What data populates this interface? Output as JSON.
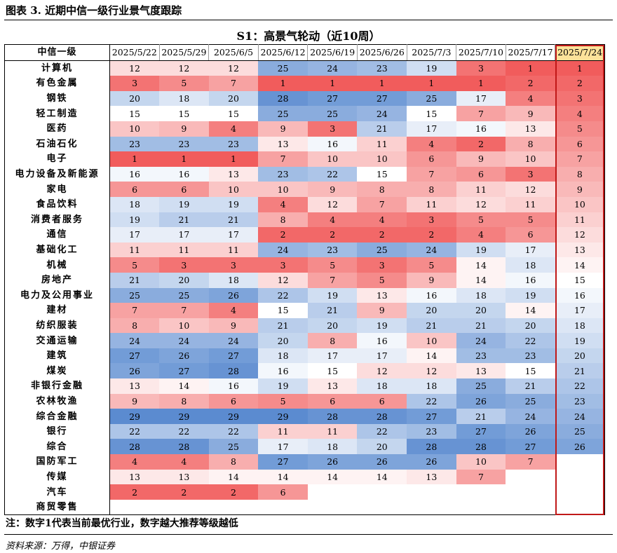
{
  "figure_title": "图表 3. 近期中信一级行业景气度跟踪",
  "table_title": "S1：高景气轮动（近10周）",
  "header_label": "中信一级",
  "highlight_column": 9,
  "colors": {
    "low_rank_red": "#f15c5c",
    "high_rank_blue": "#5b8bd0",
    "highlight_header": "#fce29a",
    "highlight_border": "#c01818"
  },
  "chart_data": {
    "type": "heatmap",
    "title": "S1：高景气轮动（近10周）",
    "scale": [
      1,
      29
    ],
    "columns": [
      "2025/5/22",
      "2025/5/29",
      "2025/6/5",
      "2025/6/12",
      "2025/6/19",
      "2025/6/26",
      "2025/7/3",
      "2025/7/10",
      "2025/7/17",
      "2025/7/24"
    ],
    "rows": [
      {
        "name": "计算机",
        "values": [
          12,
          12,
          12,
          25,
          24,
          23,
          19,
          3,
          1,
          1
        ]
      },
      {
        "name": "有色金属",
        "values": [
          3,
          5,
          7,
          1,
          1,
          1,
          1,
          1,
          2,
          2
        ]
      },
      {
        "name": "钢铁",
        "values": [
          20,
          18,
          20,
          28,
          27,
          27,
          25,
          17,
          4,
          3
        ]
      },
      {
        "name": "轻工制造",
        "values": [
          15,
          15,
          15,
          25,
          25,
          24,
          15,
          7,
          9,
          4
        ]
      },
      {
        "name": "医药",
        "values": [
          10,
          9,
          4,
          9,
          3,
          21,
          17,
          16,
          13,
          5
        ]
      },
      {
        "name": "石油石化",
        "values": [
          23,
          23,
          23,
          13,
          16,
          11,
          4,
          2,
          8,
          6
        ]
      },
      {
        "name": "电子",
        "values": [
          1,
          1,
          1,
          7,
          10,
          10,
          6,
          9,
          10,
          7
        ]
      },
      {
        "name": "电力设备及新能源",
        "values": [
          16,
          16,
          13,
          23,
          22,
          15,
          7,
          6,
          3,
          8
        ]
      },
      {
        "name": "家电",
        "values": [
          6,
          6,
          10,
          10,
          9,
          8,
          8,
          11,
          12,
          9
        ]
      },
      {
        "name": "食品饮料",
        "values": [
          18,
          19,
          19,
          4,
          12,
          7,
          11,
          12,
          11,
          10
        ]
      },
      {
        "name": "消费者服务",
        "values": [
          19,
          21,
          21,
          8,
          4,
          4,
          3,
          5,
          5,
          11
        ]
      },
      {
        "name": "通信",
        "values": [
          17,
          17,
          17,
          2,
          2,
          2,
          2,
          4,
          6,
          12
        ]
      },
      {
        "name": "基础化工",
        "values": [
          11,
          11,
          11,
          24,
          23,
          25,
          24,
          19,
          17,
          13
        ]
      },
      {
        "name": "机械",
        "values": [
          5,
          3,
          3,
          3,
          5,
          3,
          5,
          14,
          18,
          14
        ]
      },
      {
        "name": "房地产",
        "values": [
          21,
          20,
          18,
          12,
          7,
          5,
          9,
          14,
          16,
          15
        ]
      },
      {
        "name": "电力及公用事业",
        "values": [
          25,
          25,
          26,
          22,
          19,
          13,
          16,
          18,
          19,
          16
        ]
      },
      {
        "name": "建材",
        "values": [
          7,
          7,
          4,
          15,
          21,
          9,
          20,
          20,
          14,
          17
        ]
      },
      {
        "name": "纺织服装",
        "values": [
          8,
          10,
          9,
          21,
          20,
          19,
          21,
          21,
          20,
          18
        ]
      },
      {
        "name": "交通运输",
        "values": [
          24,
          24,
          24,
          20,
          8,
          16,
          10,
          24,
          22,
          19
        ]
      },
      {
        "name": "建筑",
        "values": [
          27,
          26,
          27,
          18,
          17,
          17,
          14,
          23,
          23,
          20
        ]
      },
      {
        "name": "煤炭",
        "values": [
          26,
          27,
          28,
          16,
          15,
          12,
          12,
          13,
          15,
          21
        ]
      },
      {
        "name": "非银行金融",
        "values": [
          13,
          14,
          16,
          19,
          13,
          18,
          18,
          25,
          21,
          22
        ]
      },
      {
        "name": "农林牧渔",
        "values": [
          9,
          8,
          6,
          5,
          6,
          6,
          22,
          26,
          25,
          23
        ]
      },
      {
        "name": "综合金融",
        "values": [
          29,
          29,
          29,
          29,
          28,
          28,
          27,
          21,
          24,
          24
        ]
      },
      {
        "name": "银行",
        "values": [
          22,
          22,
          22,
          11,
          11,
          22,
          23,
          27,
          26,
          25
        ]
      },
      {
        "name": "综合",
        "values": [
          28,
          28,
          25,
          17,
          18,
          20,
          28,
          28,
          27,
          26
        ]
      },
      {
        "name": "国防军工",
        "values": [
          4,
          4,
          8,
          27,
          26,
          26,
          26,
          10,
          7,
          null
        ]
      },
      {
        "name": "传媒",
        "values": [
          13,
          13,
          14,
          14,
          14,
          14,
          13,
          7,
          null,
          null
        ]
      },
      {
        "name": "汽车",
        "values": [
          2,
          2,
          2,
          6,
          null,
          null,
          null,
          null,
          null,
          null
        ]
      },
      {
        "name": "商贸零售",
        "values": [
          null,
          null,
          null,
          null,
          null,
          null,
          null,
          null,
          null,
          null
        ]
      }
    ]
  },
  "note": "注：数字1代表当前最优行业，数字越大推荐等级越低",
  "source": "资料来源：万得，中银证券"
}
